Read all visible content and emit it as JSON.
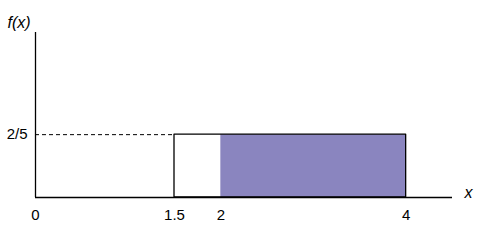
{
  "chart_data": {
    "type": "area",
    "x_label": "x",
    "y_label": "f(x)",
    "x": [
      1.5,
      4
    ],
    "values": [
      0.4,
      0.4
    ],
    "shaded": [
      2,
      4
    ],
    "color": "#8a85bf",
    "guide_line": {
      "x": [
        0,
        1.5
      ],
      "y": 0.4,
      "line_style": "dashed"
    },
    "xlim": [
      0,
      4.5
    ],
    "xticks": [
      0,
      1.5,
      2,
      4
    ],
    "ylim": [
      0,
      1.05
    ],
    "yticks": [
      {
        "value": 0.4,
        "label": "2/5"
      }
    ],
    "grid": false
  }
}
